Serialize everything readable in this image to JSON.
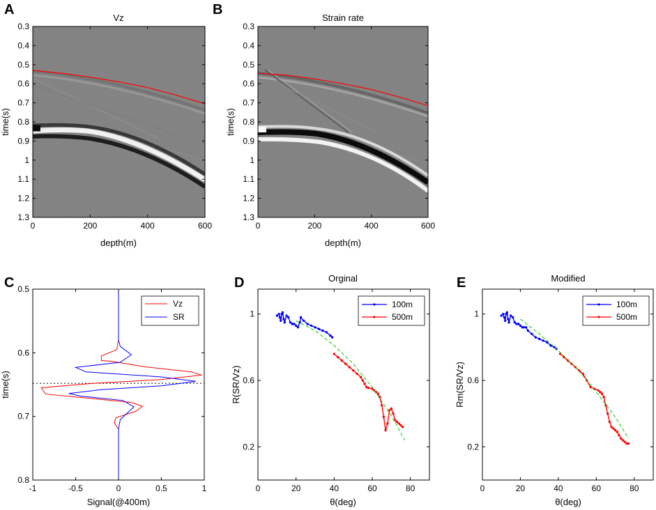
{
  "chart_data": [
    {
      "panel": "A",
      "type": "heatmap",
      "title": "Vz",
      "xlabel": "depth(m)",
      "ylabel": "time(s)",
      "xlim": [
        0,
        600
      ],
      "ylim": [
        1.3,
        0.3
      ],
      "xticks": [
        "0",
        "200",
        "400",
        "600"
      ],
      "yticks": [
        "0.3",
        "0.4",
        "0.5",
        "0.6",
        "0.7",
        "0.8",
        "0.9",
        "1",
        "1.1",
        "1.2",
        "1.3"
      ],
      "pick_curve": {
        "x": [
          0,
          100,
          200,
          300,
          400,
          500,
          600
        ],
        "y": [
          0.53,
          0.545,
          0.565,
          0.59,
          0.62,
          0.66,
          0.705
        ]
      },
      "main_event": {
        "x": [
          0,
          100,
          200,
          300,
          400,
          500,
          600
        ],
        "y": [
          0.86,
          0.87,
          0.9,
          0.95,
          1.0,
          1.06,
          1.12
        ]
      },
      "colors": {
        "pick": "#ff0000",
        "background": "#7f7f7f"
      }
    },
    {
      "panel": "B",
      "type": "heatmap",
      "title": "Strain rate",
      "xlabel": "depth(m)",
      "ylabel": "time(s)",
      "xlim": [
        0,
        600
      ],
      "ylim": [
        1.3,
        0.3
      ],
      "xticks": [
        "0",
        "200",
        "400",
        "600"
      ],
      "yticks": [
        "0.3",
        "0.4",
        "0.5",
        "0.6",
        "0.7",
        "0.8",
        "0.9",
        "1",
        "1.1",
        "1.2",
        "1.3"
      ],
      "pick_curve": {
        "x": [
          0,
          100,
          200,
          300,
          400,
          500,
          600
        ],
        "y": [
          0.545,
          0.555,
          0.575,
          0.6,
          0.63,
          0.67,
          0.715
        ]
      },
      "main_event": {
        "x": [
          0,
          100,
          200,
          300,
          400,
          500,
          600
        ],
        "y": [
          0.87,
          0.88,
          0.91,
          0.96,
          1.01,
          1.07,
          1.13
        ]
      },
      "colors": {
        "pick": "#ff0000",
        "background": "#7f7f7f"
      }
    },
    {
      "panel": "C",
      "type": "line",
      "title": "",
      "xlabel": "Signal(@400m)",
      "ylabel": "time(s)",
      "xlim": [
        -1,
        1
      ],
      "ylim": [
        0.8,
        0.5
      ],
      "xticks": [
        "-1",
        "-0.5",
        "0",
        "0.5",
        "1"
      ],
      "yticks": [
        "0.5",
        "0.6",
        "0.7",
        "0.8"
      ],
      "reference_time": 0.648,
      "legend": [
        "Vz",
        "SR"
      ],
      "series": [
        {
          "name": "Vz",
          "color": "#ff0000",
          "points": [
            [
              0,
              0.5
            ],
            [
              0,
              0.58
            ],
            [
              -0.02,
              0.595
            ],
            [
              -0.2,
              0.605
            ],
            [
              -0.2,
              0.612
            ],
            [
              -0.05,
              0.614
            ],
            [
              0.3,
              0.622
            ],
            [
              0.85,
              0.63
            ],
            [
              0.97,
              0.635
            ],
            [
              0.5,
              0.642
            ],
            [
              -0.3,
              0.648
            ],
            [
              -0.9,
              0.655
            ],
            [
              -0.85,
              0.665
            ],
            [
              -0.3,
              0.672
            ],
            [
              0.15,
              0.678
            ],
            [
              0.28,
              0.684
            ],
            [
              0.2,
              0.692
            ],
            [
              -0.03,
              0.702
            ],
            [
              -0.05,
              0.71
            ],
            [
              0,
              0.72
            ],
            [
              0,
              0.8
            ]
          ]
        },
        {
          "name": "SR",
          "color": "#0000ff",
          "points": [
            [
              0,
              0.5
            ],
            [
              0,
              0.58
            ],
            [
              0.02,
              0.59
            ],
            [
              0.15,
              0.603
            ],
            [
              0.02,
              0.615
            ],
            [
              -0.5,
              0.623
            ],
            [
              -0.38,
              0.63
            ],
            [
              0.5,
              0.638
            ],
            [
              0.9,
              0.645
            ],
            [
              0.5,
              0.652
            ],
            [
              -0.2,
              0.658
            ],
            [
              -0.58,
              0.664
            ],
            [
              -0.45,
              0.668
            ],
            [
              0.05,
              0.675
            ],
            [
              0.18,
              0.685
            ],
            [
              0.1,
              0.695
            ],
            [
              0.02,
              0.705
            ],
            [
              0,
              0.72
            ],
            [
              0,
              0.8
            ]
          ]
        }
      ]
    },
    {
      "panel": "D",
      "type": "scatter",
      "title": "Orginal",
      "xlabel": "θ(deg)",
      "ylabel": "R(SR/Vz)",
      "xlim": [
        0,
        90
      ],
      "ylim": [
        0,
        1.15
      ],
      "xticks": [
        "0",
        "20",
        "40",
        "60",
        "80"
      ],
      "yticks": [
        "0.2",
        "0.6",
        "1"
      ],
      "legend": [
        "100m",
        "500m"
      ],
      "series": [
        {
          "name": "100m",
          "color": "#0000ff",
          "points": [
            [
              10,
              0.99
            ],
            [
              11,
              1.0
            ],
            [
              11.5,
              0.98
            ],
            [
              12,
              0.96
            ],
            [
              12.5,
              1.0
            ],
            [
              13,
              1.01
            ],
            [
              13.5,
              0.97
            ],
            [
              14,
              0.95
            ],
            [
              15,
              0.99
            ],
            [
              16,
              0.98
            ],
            [
              17,
              0.95
            ],
            [
              18,
              0.94
            ],
            [
              19,
              0.94
            ],
            [
              20,
              0.93
            ],
            [
              21,
              0.92
            ],
            [
              22,
              0.95
            ],
            [
              22.5,
              0.98
            ],
            [
              24,
              0.96
            ],
            [
              26,
              0.94
            ],
            [
              28,
              0.93
            ],
            [
              30,
              0.92
            ],
            [
              32,
              0.91
            ],
            [
              34,
              0.9
            ],
            [
              36,
              0.89
            ],
            [
              38,
              0.87
            ],
            [
              39,
              0.86
            ]
          ]
        },
        {
          "name": "500m",
          "color": "#ff0000",
          "points": [
            [
              40,
              0.76
            ],
            [
              42,
              0.74
            ],
            [
              44,
              0.72
            ],
            [
              46,
              0.7
            ],
            [
              48,
              0.68
            ],
            [
              50,
              0.66
            ],
            [
              52,
              0.64
            ],
            [
              54,
              0.62
            ],
            [
              55,
              0.6
            ],
            [
              56,
              0.58
            ],
            [
              57,
              0.56
            ],
            [
              58,
              0.555
            ],
            [
              60,
              0.55
            ],
            [
              61,
              0.54
            ],
            [
              62,
              0.53
            ],
            [
              63,
              0.52
            ],
            [
              64,
              0.5
            ],
            [
              65,
              0.45
            ],
            [
              66,
              0.38
            ],
            [
              67,
              0.3
            ],
            [
              68,
              0.34
            ],
            [
              69,
              0.42
            ],
            [
              70,
              0.43
            ],
            [
              71,
              0.4
            ],
            [
              72,
              0.36
            ],
            [
              73,
              0.35
            ],
            [
              74,
              0.34
            ],
            [
              75,
              0.33
            ],
            [
              76,
              0.32
            ]
          ]
        },
        {
          "name": "fit",
          "color": "#00c800",
          "points": [
            [
              20,
              0.96
            ],
            [
              30,
              0.9
            ],
            [
              40,
              0.81
            ],
            [
              50,
              0.7
            ],
            [
              60,
              0.56
            ],
            [
              70,
              0.39
            ],
            [
              77,
              0.24
            ]
          ]
        }
      ]
    },
    {
      "panel": "E",
      "type": "scatter",
      "title": "Modified",
      "xlabel": "θ(deg)",
      "ylabel": "Rm(SR/Vz)",
      "xlim": [
        0,
        90
      ],
      "ylim": [
        0,
        1.15
      ],
      "xticks": [
        "0",
        "20",
        "40",
        "60",
        "80"
      ],
      "yticks": [
        "0.2",
        "0.6",
        "1"
      ],
      "legend": [
        "100m",
        "500m"
      ],
      "series": [
        {
          "name": "100m",
          "color": "#0000ff",
          "points": [
            [
              10,
              0.99
            ],
            [
              11,
              1.0
            ],
            [
              11.5,
              0.98
            ],
            [
              12,
              0.96
            ],
            [
              12.5,
              1.0
            ],
            [
              13,
              1.01
            ],
            [
              13.5,
              0.97
            ],
            [
              14,
              0.95
            ],
            [
              15,
              0.99
            ],
            [
              16,
              0.98
            ],
            [
              17,
              0.95
            ],
            [
              18,
              0.94
            ],
            [
              19,
              0.94
            ],
            [
              20,
              0.93
            ],
            [
              21,
              0.92
            ],
            [
              22,
              0.92
            ],
            [
              23,
              0.92
            ],
            [
              24,
              0.9
            ],
            [
              26,
              0.88
            ],
            [
              28,
              0.86
            ],
            [
              30,
              0.85
            ],
            [
              32,
              0.84
            ],
            [
              34,
              0.83
            ],
            [
              36,
              0.81
            ],
            [
              38,
              0.8
            ],
            [
              39,
              0.79
            ]
          ]
        },
        {
          "name": "500m",
          "color": "#ff0000",
          "points": [
            [
              41,
              0.76
            ],
            [
              43,
              0.74
            ],
            [
              45,
              0.72
            ],
            [
              47,
              0.7
            ],
            [
              49,
              0.68
            ],
            [
              51,
              0.66
            ],
            [
              53,
              0.64
            ],
            [
              55,
              0.6
            ],
            [
              57,
              0.56
            ],
            [
              59,
              0.55
            ],
            [
              61,
              0.54
            ],
            [
              62,
              0.53
            ],
            [
              63,
              0.52
            ],
            [
              64,
              0.5
            ],
            [
              65,
              0.45
            ],
            [
              66,
              0.4
            ],
            [
              67,
              0.35
            ],
            [
              68,
              0.32
            ],
            [
              69,
              0.31
            ],
            [
              70,
              0.3
            ],
            [
              71,
              0.29
            ],
            [
              72,
              0.27
            ],
            [
              73,
              0.25
            ],
            [
              74,
              0.24
            ],
            [
              75,
              0.23
            ],
            [
              76,
              0.22
            ],
            [
              77,
              0.22
            ]
          ]
        },
        {
          "name": "fit",
          "color": "#00c800",
          "points": [
            [
              20,
              0.97
            ],
            [
              30,
              0.88
            ],
            [
              40,
              0.78
            ],
            [
              50,
              0.67
            ],
            [
              60,
              0.53
            ],
            [
              70,
              0.38
            ],
            [
              77,
              0.25
            ]
          ]
        }
      ]
    }
  ]
}
